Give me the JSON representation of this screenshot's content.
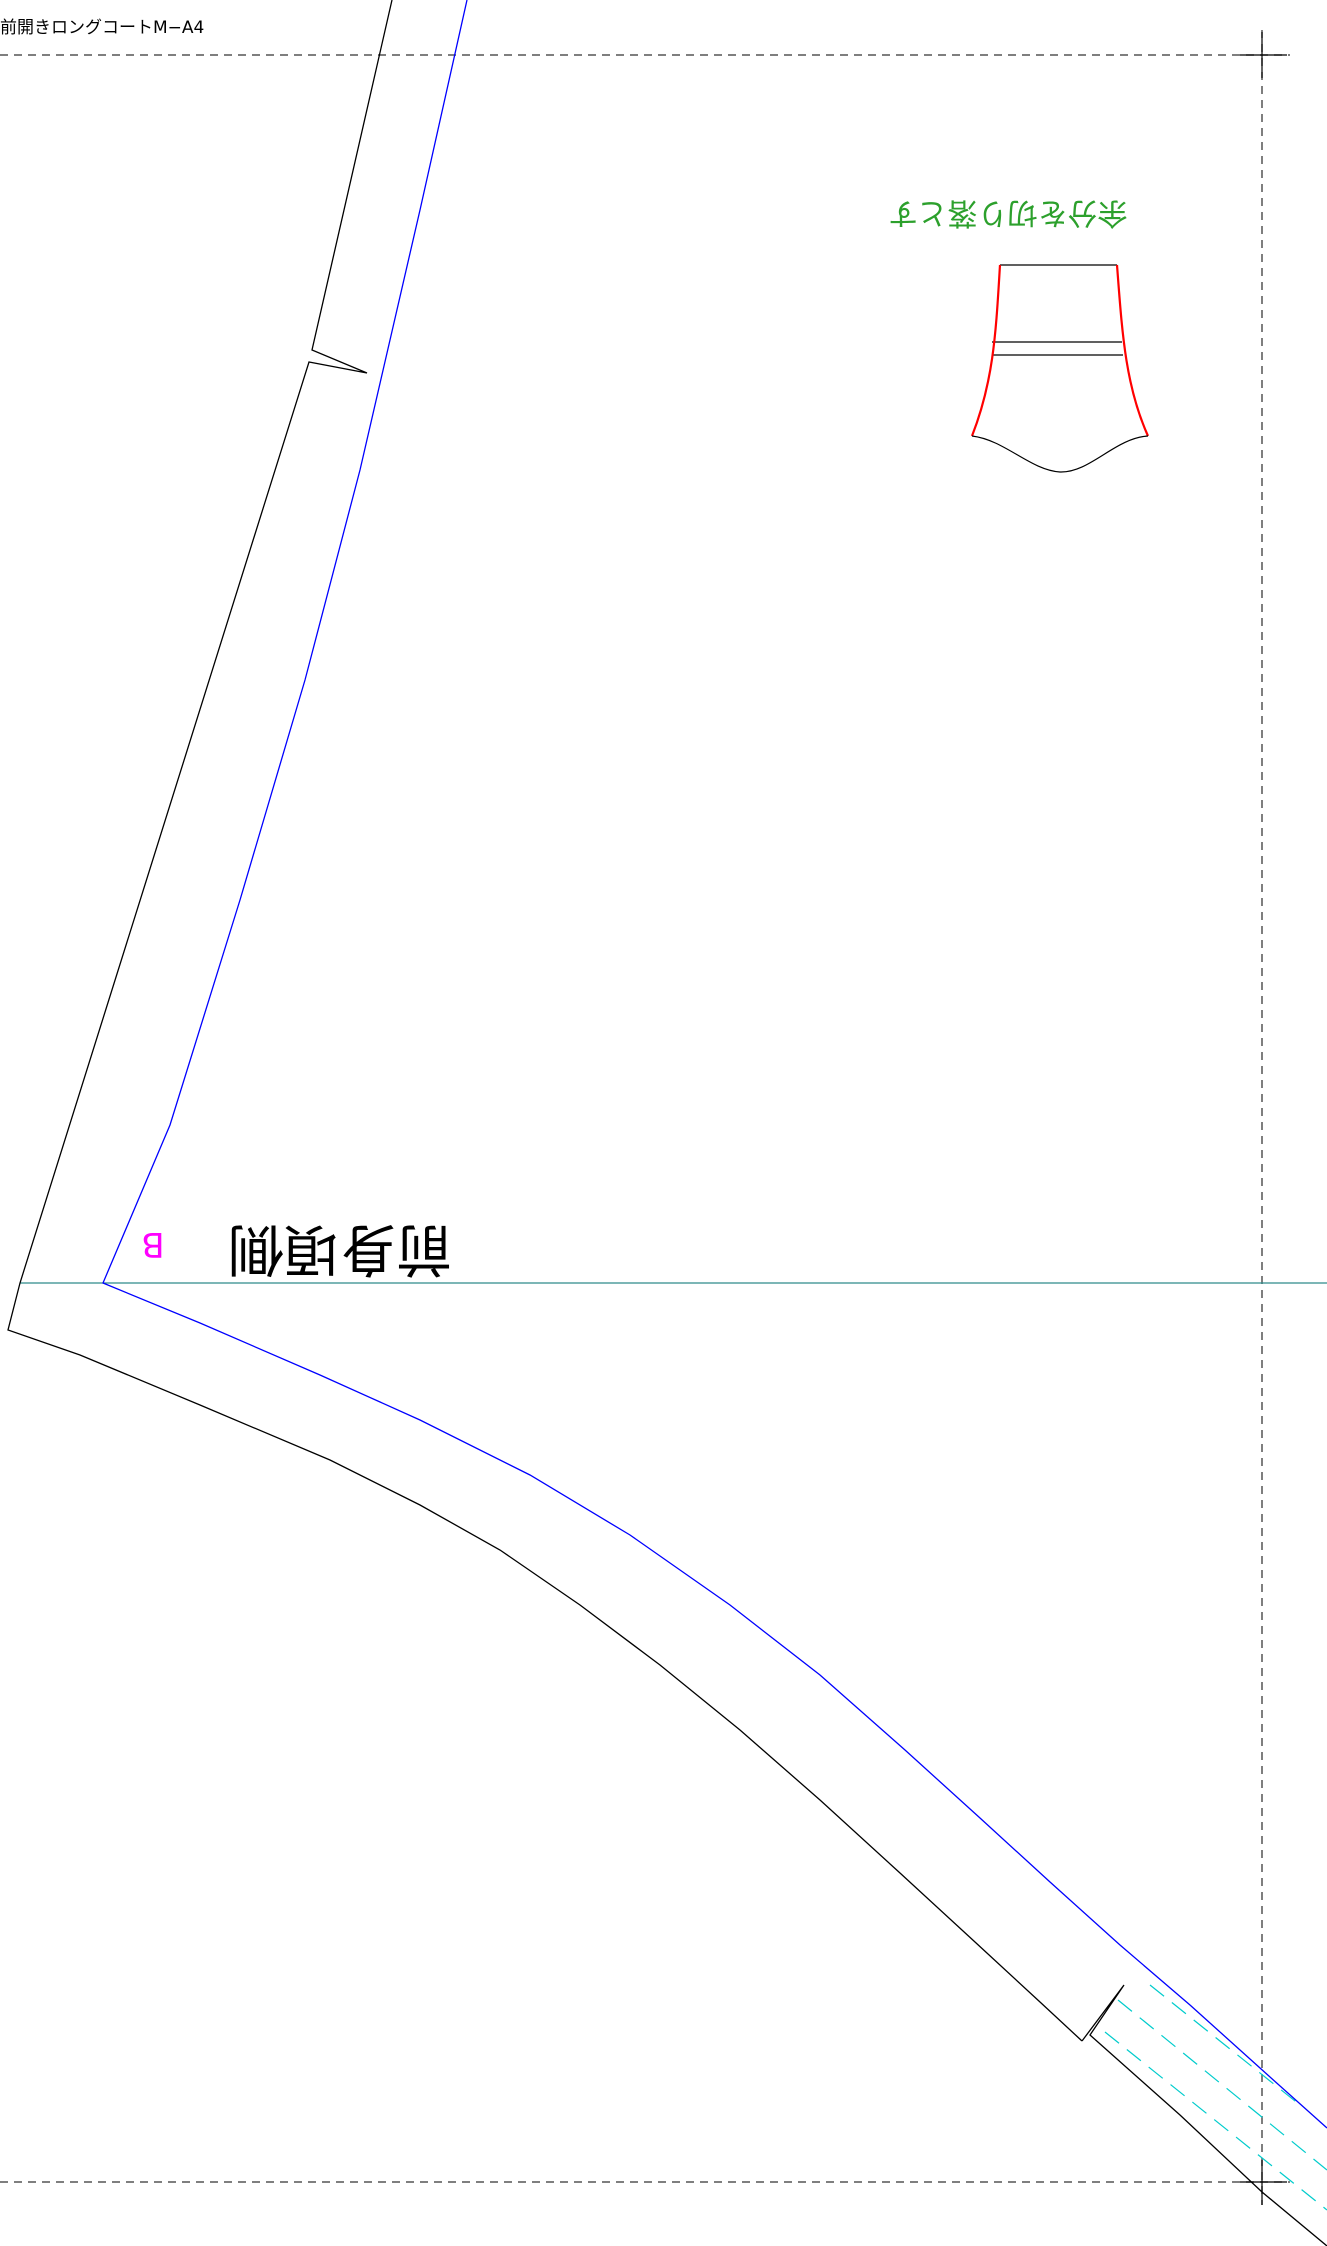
{
  "page": {
    "title": "前開きロングコートM−A4"
  },
  "labels": {
    "trim_note": "余分を切り落とす",
    "piece_name": "前身頃側",
    "marker": "B"
  },
  "colors": {
    "cut_line": "#000000",
    "seam_line": "#0000ff",
    "guide_line": "#2e8b8b",
    "trim_note": "#2ca02c",
    "marker": "#ff00ff",
    "overlap_dash": "#00cccc",
    "highlight_edge": "#ff0000"
  }
}
